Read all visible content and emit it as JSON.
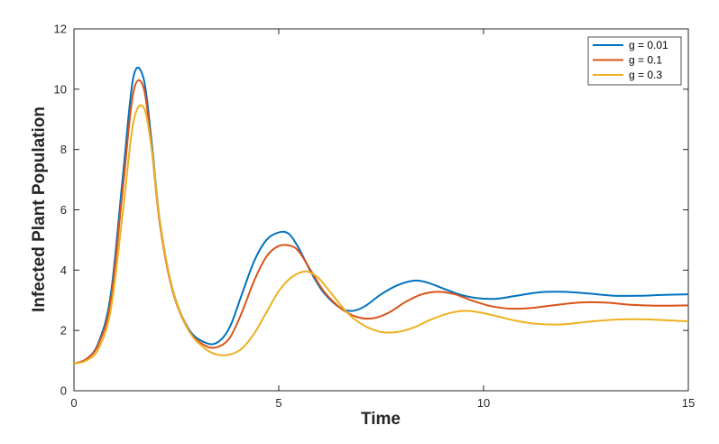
{
  "chart_data": {
    "type": "line",
    "title": "",
    "xlabel": "Time",
    "ylabel": "Infected Plant Population",
    "xlim": [
      0,
      15
    ],
    "ylim": [
      0,
      12
    ],
    "xticks": [
      0,
      5,
      10,
      15
    ],
    "yticks": [
      0,
      2,
      4,
      6,
      8,
      10,
      12
    ],
    "grid": false,
    "legend_position": "top-right",
    "series": [
      {
        "name": "g = 0.01",
        "color": "#0072BD",
        "x": [
          0,
          0.3,
          0.6,
          0.9,
          1.2,
          1.45,
          1.7,
          1.9,
          2.1,
          2.4,
          2.8,
          3.2,
          3.5,
          3.8,
          4.1,
          4.4,
          4.7,
          5.0,
          5.25,
          5.5,
          5.8,
          6.1,
          6.5,
          6.8,
          7.1,
          7.5,
          7.9,
          8.3,
          8.6,
          9.0,
          9.4,
          9.8,
          10.3,
          10.8,
          11.4,
          12.0,
          12.6,
          13.2,
          13.8,
          14.4,
          15.0
        ],
        "y": [
          0.9,
          1.05,
          1.6,
          3.2,
          7.2,
          10.4,
          10.35,
          8.2,
          5.6,
          3.4,
          2.05,
          1.6,
          1.6,
          2.1,
          3.2,
          4.3,
          5.0,
          5.25,
          5.2,
          4.7,
          3.9,
          3.25,
          2.75,
          2.65,
          2.8,
          3.2,
          3.5,
          3.65,
          3.6,
          3.4,
          3.2,
          3.08,
          3.05,
          3.15,
          3.27,
          3.28,
          3.22,
          3.15,
          3.15,
          3.18,
          3.2
        ]
      },
      {
        "name": "g = 0.1",
        "color": "#D95319",
        "x": [
          0,
          0.3,
          0.6,
          0.9,
          1.2,
          1.45,
          1.7,
          1.9,
          2.1,
          2.4,
          2.8,
          3.2,
          3.5,
          3.8,
          4.1,
          4.4,
          4.7,
          5.0,
          5.3,
          5.5,
          5.8,
          6.1,
          6.5,
          6.9,
          7.3,
          7.7,
          8.1,
          8.5,
          8.9,
          9.3,
          9.7,
          10.2,
          10.7,
          11.2,
          11.8,
          12.4,
          13.0,
          13.6,
          14.2,
          15.0
        ],
        "y": [
          0.9,
          1.05,
          1.55,
          3.0,
          6.8,
          9.9,
          10.05,
          8.0,
          5.5,
          3.35,
          2.0,
          1.5,
          1.45,
          1.75,
          2.6,
          3.65,
          4.45,
          4.8,
          4.8,
          4.6,
          3.95,
          3.3,
          2.75,
          2.45,
          2.4,
          2.6,
          2.95,
          3.2,
          3.28,
          3.2,
          3.0,
          2.8,
          2.72,
          2.75,
          2.85,
          2.93,
          2.92,
          2.85,
          2.82,
          2.83
        ]
      },
      {
        "name": "g = 0.3",
        "color": "#EDB120",
        "x": [
          0,
          0.3,
          0.6,
          0.9,
          1.2,
          1.45,
          1.7,
          1.9,
          2.1,
          2.4,
          2.8,
          3.2,
          3.5,
          3.8,
          4.1,
          4.4,
          4.7,
          5.0,
          5.3,
          5.6,
          5.8,
          6.0,
          6.3,
          6.7,
          7.1,
          7.5,
          7.9,
          8.3,
          8.7,
          9.1,
          9.5,
          9.9,
          10.3,
          10.8,
          11.3,
          11.9,
          12.5,
          13.1,
          13.7,
          14.3,
          15.0
        ],
        "y": [
          0.9,
          1.0,
          1.4,
          2.7,
          6.0,
          8.9,
          9.4,
          8.0,
          5.6,
          3.4,
          2.0,
          1.4,
          1.2,
          1.2,
          1.4,
          1.9,
          2.6,
          3.3,
          3.75,
          3.95,
          3.9,
          3.7,
          3.2,
          2.55,
          2.15,
          1.95,
          1.95,
          2.1,
          2.35,
          2.55,
          2.65,
          2.6,
          2.48,
          2.32,
          2.22,
          2.2,
          2.28,
          2.35,
          2.37,
          2.35,
          2.3
        ]
      }
    ]
  }
}
